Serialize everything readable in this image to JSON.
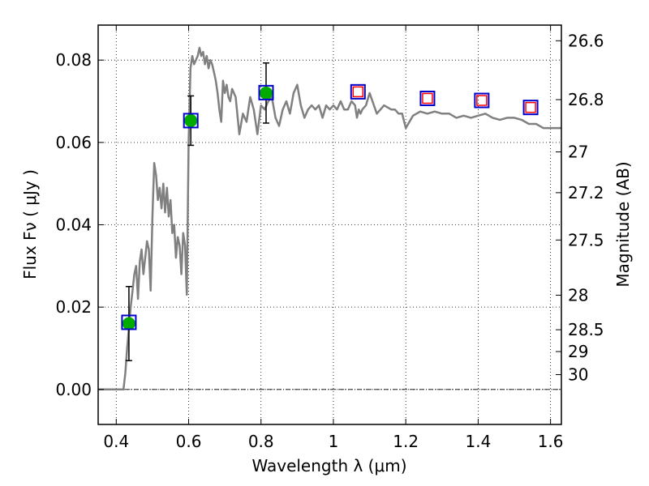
{
  "chart_data": {
    "type": "scatter",
    "xlabel": "Wavelength  λ (μm)",
    "ylabel": "Flux  Fν  ( μJy )",
    "y2label": "Magnitude (AB)",
    "xlim": [
      0.35,
      1.63
    ],
    "ylim": [
      -0.0085,
      0.0885
    ],
    "grid": true,
    "x_ticks": [
      {
        "value": 0.4,
        "label": "0.4"
      },
      {
        "value": 0.6,
        "label": "0.6"
      },
      {
        "value": 0.8,
        "label": "0.8"
      },
      {
        "value": 1.0,
        "label": "1"
      },
      {
        "value": 1.2,
        "label": "1.2"
      },
      {
        "value": 1.4,
        "label": "1.4"
      },
      {
        "value": 1.6,
        "label": "1.6"
      }
    ],
    "y_ticks": [
      {
        "value": 0.0,
        "label": "0.00"
      },
      {
        "value": 0.02,
        "label": "0.02"
      },
      {
        "value": 0.04,
        "label": "0.04"
      },
      {
        "value": 0.06,
        "label": "0.06"
      },
      {
        "value": 0.08,
        "label": "0.08"
      }
    ],
    "mag_ticks": [
      {
        "flux": 0.0847,
        "label": "26.6"
      },
      {
        "flux": 0.0704,
        "label": "26.8"
      },
      {
        "flux": 0.0577,
        "label": "27"
      },
      {
        "flux": 0.0478,
        "label": "27.2"
      },
      {
        "flux": 0.0363,
        "label": "27.5"
      },
      {
        "flux": 0.0229,
        "label": "28"
      },
      {
        "flux": 0.0145,
        "label": "28.5"
      },
      {
        "flux": 0.0092,
        "label": "29"
      },
      {
        "flux": 0.0036,
        "label": "30"
      }
    ],
    "series": [
      {
        "kind": "line",
        "color": "#808080",
        "x": [
          0.35,
          0.42,
          0.425,
          0.43,
          0.44,
          0.445,
          0.45,
          0.455,
          0.46,
          0.465,
          0.47,
          0.475,
          0.48,
          0.485,
          0.49,
          0.495,
          0.5,
          0.505,
          0.51,
          0.515,
          0.52,
          0.525,
          0.53,
          0.535,
          0.54,
          0.545,
          0.55,
          0.555,
          0.56,
          0.565,
          0.57,
          0.575,
          0.58,
          0.585,
          0.59,
          0.595,
          0.6,
          0.605,
          0.61,
          0.615,
          0.62,
          0.625,
          0.63,
          0.635,
          0.64,
          0.645,
          0.65,
          0.655,
          0.66,
          0.665,
          0.67,
          0.675,
          0.68,
          0.685,
          0.69,
          0.695,
          0.7,
          0.705,
          0.71,
          0.715,
          0.72,
          0.73,
          0.74,
          0.75,
          0.76,
          0.77,
          0.78,
          0.79,
          0.8,
          0.81,
          0.82,
          0.83,
          0.84,
          0.85,
          0.86,
          0.87,
          0.88,
          0.89,
          0.9,
          0.91,
          0.92,
          0.93,
          0.94,
          0.95,
          0.96,
          0.97,
          0.98,
          0.99,
          1.0,
          1.01,
          1.02,
          1.03,
          1.04,
          1.05,
          1.06,
          1.065,
          1.07,
          1.075,
          1.08,
          1.09,
          1.1,
          1.12,
          1.14,
          1.16,
          1.17,
          1.18,
          1.19,
          1.2,
          1.22,
          1.24,
          1.26,
          1.28,
          1.3,
          1.32,
          1.34,
          1.36,
          1.38,
          1.4,
          1.42,
          1.44,
          1.46,
          1.48,
          1.5,
          1.52,
          1.54,
          1.56,
          1.58,
          1.6,
          1.63
        ],
        "y": [
          0.0,
          0.0,
          0.004,
          0.01,
          0.02,
          0.024,
          0.028,
          0.03,
          0.022,
          0.031,
          0.034,
          0.028,
          0.032,
          0.036,
          0.034,
          0.024,
          0.042,
          0.055,
          0.052,
          0.046,
          0.049,
          0.044,
          0.05,
          0.043,
          0.049,
          0.042,
          0.046,
          0.038,
          0.04,
          0.032,
          0.037,
          0.035,
          0.028,
          0.038,
          0.035,
          0.023,
          0.06,
          0.078,
          0.081,
          0.079,
          0.08,
          0.081,
          0.083,
          0.081,
          0.082,
          0.079,
          0.081,
          0.078,
          0.08,
          0.079,
          0.077,
          0.075,
          0.072,
          0.068,
          0.065,
          0.075,
          0.072,
          0.074,
          0.071,
          0.07,
          0.073,
          0.071,
          0.062,
          0.067,
          0.065,
          0.071,
          0.068,
          0.062,
          0.069,
          0.068,
          0.07,
          0.071,
          0.066,
          0.064,
          0.068,
          0.07,
          0.067,
          0.072,
          0.074,
          0.069,
          0.066,
          0.068,
          0.069,
          0.068,
          0.069,
          0.066,
          0.069,
          0.068,
          0.069,
          0.068,
          0.07,
          0.068,
          0.068,
          0.07,
          0.069,
          0.066,
          0.068,
          0.067,
          0.068,
          0.069,
          0.072,
          0.067,
          0.069,
          0.068,
          0.068,
          0.067,
          0.067,
          0.0635,
          0.0665,
          0.0675,
          0.067,
          0.0675,
          0.067,
          0.067,
          0.066,
          0.0665,
          0.066,
          0.0665,
          0.067,
          0.066,
          0.0655,
          0.066,
          0.066,
          0.0655,
          0.0645,
          0.0645,
          0.0635,
          0.0635,
          0.0635
        ]
      },
      {
        "kind": "markers",
        "marker": "circle",
        "color": "#00aa00",
        "points": [
          {
            "x": 0.435,
            "y": 0.016,
            "err": 0.009
          },
          {
            "x": 0.606,
            "y": 0.0653,
            "err": 0.006
          },
          {
            "x": 0.814,
            "y": 0.072,
            "err": 0.0073
          }
        ]
      },
      {
        "kind": "markers",
        "marker": "square-blue",
        "color": "#0000cc",
        "points": [
          {
            "x": 0.435,
            "y": 0.0163
          },
          {
            "x": 0.606,
            "y": 0.0653
          },
          {
            "x": 0.814,
            "y": 0.0721
          },
          {
            "x": 1.068,
            "y": 0.0723
          },
          {
            "x": 1.26,
            "y": 0.0707
          },
          {
            "x": 1.41,
            "y": 0.0702
          },
          {
            "x": 1.545,
            "y": 0.0685
          }
        ]
      },
      {
        "kind": "markers",
        "marker": "square-red",
        "color": "#ff0000",
        "points": [
          {
            "x": 1.068,
            "y": 0.0723
          },
          {
            "x": 1.26,
            "y": 0.0707
          },
          {
            "x": 1.41,
            "y": 0.0702
          },
          {
            "x": 1.545,
            "y": 0.0685
          }
        ]
      }
    ]
  }
}
